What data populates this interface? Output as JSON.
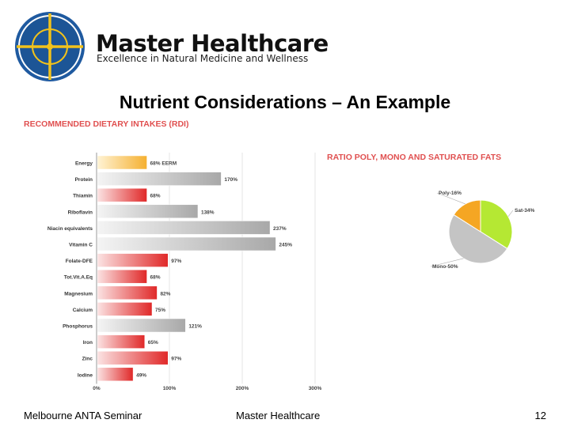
{
  "header": {
    "brand_name": "Master Healthcare",
    "tagline": "Excellence in Natural Medicine and Wellness",
    "logo_icon": "compass-cross-icon"
  },
  "slide": {
    "title": "Nutrient Considerations – An Example"
  },
  "chart_data": [
    {
      "type": "bar",
      "orientation": "horizontal",
      "title": "RECOMMENDED DIETARY INTAKES (RDI)",
      "categories": [
        "Energy",
        "Protein",
        "Thiamin",
        "Riboflavin",
        "Niacin equivalents",
        "Vitamin C",
        "Folate-DFE",
        "Tot.Vit.A.Eq",
        "Magnesium",
        "Calcium",
        "Phosphorus",
        "Iron",
        "Zinc",
        "Iodine"
      ],
      "values": [
        68,
        170,
        68,
        138,
        237,
        245,
        97,
        68,
        82,
        75,
        121,
        65,
        97,
        49
      ],
      "data_labels": [
        "68% EERM",
        "170%",
        "68%",
        "138%",
        "237%",
        "245%",
        "97%",
        "68%",
        "82%",
        "75%",
        "121%",
        "65%",
        "97%",
        "49%"
      ],
      "colors": {
        "energy": "#f5b93a",
        "under": "#e03030",
        "over": "#b8b8b8",
        "title": "#e05050"
      },
      "xlim": [
        0,
        300
      ],
      "xticks": [
        "0%",
        "100%",
        "200%",
        "300%"
      ]
    },
    {
      "type": "pie",
      "title": "RATIO POLY, MONO AND SATURATED FATS",
      "slices": [
        {
          "label": "Sat-34%",
          "value": 34,
          "color": "#b5e833"
        },
        {
          "label": "Mono-50%",
          "value": 50,
          "color": "#c4c4c4"
        },
        {
          "label": "Poly-16%",
          "value": 16,
          "color": "#f5a623"
        }
      ]
    }
  ],
  "footer": {
    "left": "Melbourne ANTA Seminar",
    "center": "Master Healthcare",
    "page": "12"
  }
}
